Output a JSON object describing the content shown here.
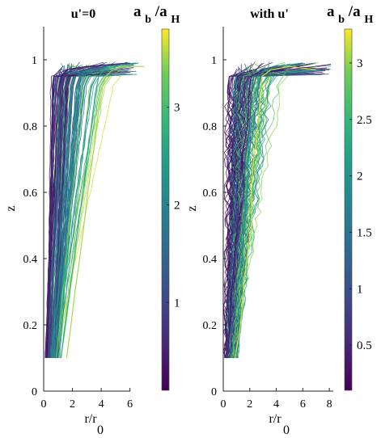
{
  "chart_data": [
    {
      "type": "line",
      "title": "u'=0",
      "xlabel": "r/r",
      "xlabel_sub": "0",
      "ylabel": "z",
      "xlim": [
        0,
        9
      ],
      "ylim": [
        0,
        1.1
      ],
      "xticks": [
        "0",
        "2",
        "4",
        "6"
      ],
      "yticks": [
        "0",
        "0.2",
        "0.4",
        "0.6",
        "0.8",
        "1"
      ],
      "colorbar": {
        "label_main": "a",
        "label_sub1": "b",
        "label_mid": "/a",
        "label_sub2": "H",
        "range": [
          0.1,
          3.8
        ],
        "ticks": [
          "1",
          "2",
          "3"
        ],
        "colormap": "viridis"
      },
      "series_note": "~120 radial profiles r/r0(z), colored by ab/aH",
      "series": [
        {
          "color_value": 0.3,
          "x": [
            0.2,
            0.3,
            0.4,
            0.5,
            0.6,
            0.7,
            0.8,
            0.9,
            1.0,
            1.2,
            1.6,
            3.0,
            5.8
          ],
          "y": [
            0.1,
            0.2,
            0.3,
            0.4,
            0.5,
            0.6,
            0.7,
            0.8,
            0.9,
            0.95,
            0.97,
            0.98,
            0.99
          ]
        },
        {
          "color_value": 0.8,
          "x": [
            0.4,
            0.5,
            0.6,
            0.7,
            0.8,
            0.9,
            1.0,
            1.1,
            1.2,
            1.4,
            1.9,
            3.5,
            6.0
          ],
          "y": [
            0.1,
            0.2,
            0.3,
            0.4,
            0.5,
            0.6,
            0.7,
            0.8,
            0.9,
            0.95,
            0.97,
            0.98,
            0.99
          ]
        },
        {
          "color_value": 1.6,
          "x": [
            0.8,
            1.0,
            1.2,
            1.4,
            1.6,
            1.8,
            2.0,
            2.2,
            2.4,
            2.6,
            3.0,
            4.2,
            6.4
          ],
          "y": [
            0.1,
            0.2,
            0.3,
            0.4,
            0.5,
            0.6,
            0.7,
            0.8,
            0.9,
            0.95,
            0.97,
            0.98,
            0.99
          ]
        },
        {
          "color_value": 2.6,
          "x": [
            1.2,
            1.5,
            1.8,
            2.1,
            2.4,
            2.7,
            3.0,
            3.3,
            3.6,
            3.8,
            4.2,
            5.2,
            6.6
          ],
          "y": [
            0.1,
            0.2,
            0.3,
            0.4,
            0.5,
            0.6,
            0.7,
            0.8,
            0.9,
            0.95,
            0.97,
            0.98,
            0.99
          ]
        },
        {
          "color_value": 3.5,
          "x": [
            1.6,
            1.9,
            2.2,
            2.5,
            2.8,
            3.1,
            3.4,
            3.7,
            4.0,
            4.3,
            4.8,
            5.8,
            7.0
          ],
          "y": [
            0.1,
            0.2,
            0.3,
            0.4,
            0.5,
            0.6,
            0.7,
            0.8,
            0.9,
            0.95,
            0.97,
            0.98,
            0.98
          ]
        }
      ]
    },
    {
      "type": "line",
      "title": "with u'",
      "xlabel": "r/r",
      "xlabel_sub": "0",
      "ylabel": "z",
      "xlim": [
        0,
        8.3
      ],
      "ylim": [
        0,
        1.1
      ],
      "xticks": [
        "0",
        "2",
        "4",
        "6",
        "8"
      ],
      "yticks": [
        "0",
        "0.2",
        "0.4",
        "0.6",
        "0.8",
        "1"
      ],
      "colorbar": {
        "label_main": "a",
        "label_sub1": "b",
        "label_mid": "/a",
        "label_sub2": "H",
        "range": [
          0.1,
          3.3
        ],
        "ticks": [
          "0.5",
          "1",
          "1.5",
          "2",
          "2.5",
          "3"
        ],
        "colormap": "viridis"
      },
      "series_note": "~120 noisy radial profiles r/r0(z), colored by ab/aH",
      "series": [
        {
          "color_value": 0.3,
          "x": [
            0.3,
            0.5,
            0.8,
            1.0,
            1.2,
            1.4,
            1.6,
            1.8,
            2.0,
            2.3,
            3.0,
            5.0,
            8.0
          ],
          "y": [
            0.1,
            0.2,
            0.3,
            0.4,
            0.5,
            0.6,
            0.7,
            0.8,
            0.9,
            0.95,
            0.97,
            0.98,
            0.97
          ]
        },
        {
          "color_value": 1.0,
          "x": [
            0.5,
            0.7,
            0.9,
            1.1,
            1.3,
            1.5,
            1.7,
            1.9,
            2.1,
            2.3,
            2.8,
            4.0,
            6.0
          ],
          "y": [
            0.1,
            0.2,
            0.3,
            0.4,
            0.5,
            0.6,
            0.7,
            0.8,
            0.9,
            0.95,
            0.97,
            0.98,
            0.99
          ]
        },
        {
          "color_value": 1.8,
          "x": [
            0.6,
            0.9,
            1.2,
            1.5,
            1.7,
            1.9,
            2.1,
            2.3,
            2.5,
            2.7,
            3.1,
            4.2,
            6.0
          ],
          "y": [
            0.1,
            0.2,
            0.3,
            0.4,
            0.5,
            0.6,
            0.7,
            0.8,
            0.9,
            0.95,
            0.97,
            0.98,
            0.99
          ]
        },
        {
          "color_value": 3.2,
          "x": [
            0.9,
            1.3,
            1.6,
            1.9,
            2.1,
            2.3,
            2.5,
            2.7,
            2.9,
            3.1,
            3.6,
            5.0,
            7.0
          ],
          "y": [
            0.1,
            0.2,
            0.3,
            0.4,
            0.5,
            0.6,
            0.7,
            0.8,
            0.9,
            0.95,
            0.97,
            0.98,
            0.97
          ]
        }
      ]
    }
  ]
}
